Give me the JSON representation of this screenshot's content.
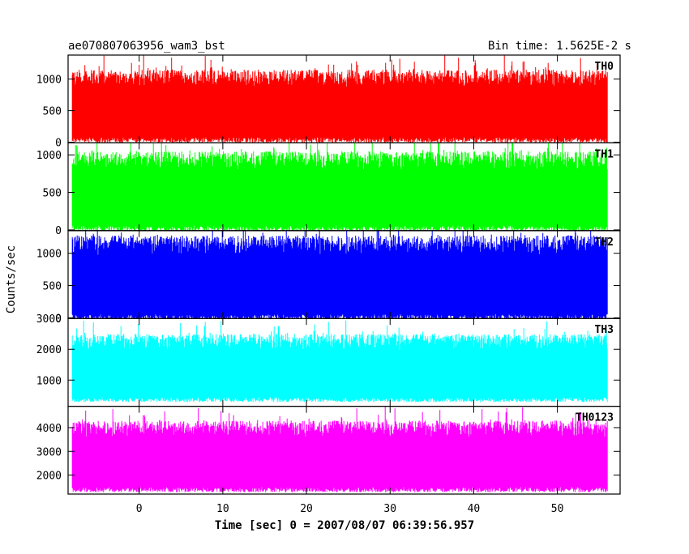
{
  "header": {
    "title": "ae070807063956_wam3_bst",
    "bin_time": "Bin time: 1.5625E-2 s"
  },
  "axes": {
    "ylabel": "Counts/sec",
    "xlabel": "Time [sec] 0 = 2007/08/07 06:39:56.957"
  },
  "chart_data": {
    "type": "line",
    "title": "ae070807063956_wam3_bst",
    "subtitle": "Bin time: 1.5625E-2 s",
    "xlabel": "Time [sec] 0 = 2007/08/07 06:39:56.957",
    "ylabel": "Counts/sec",
    "xlim": [
      -8.5,
      57.5
    ],
    "data_x_range": [
      -8.0,
      56.0
    ],
    "x_ticks": [
      0,
      10,
      20,
      30,
      40,
      50
    ],
    "grid": false,
    "panels": [
      {
        "name": "TH0",
        "color": "#ff0000",
        "ylim": [
          -10,
          1380
        ],
        "y_ticks": [
          0,
          500,
          1000
        ],
        "typical_range": [
          80,
          1150
        ],
        "mean": 550
      },
      {
        "name": "TH1",
        "color": "#00ff00",
        "ylim": [
          -10,
          1160
        ],
        "y_ticks": [
          0,
          500,
          1000
        ],
        "typical_range": [
          60,
          1050
        ],
        "mean": 500
      },
      {
        "name": "TH2",
        "color": "#0000ff",
        "ylim": [
          -10,
          1350
        ],
        "y_ticks": [
          0,
          500,
          1000
        ],
        "typical_range": [
          60,
          1280
        ],
        "mean": 600
      },
      {
        "name": "TH3",
        "color": "#00ffff",
        "ylim": [
          150,
          3000
        ],
        "y_ticks": [
          1000,
          2000,
          3000
        ],
        "typical_range": [
          450,
          2500
        ],
        "mean": 1350
      },
      {
        "name": "TH0123",
        "color": "#ff00ff",
        "ylim": [
          1200,
          4900
        ],
        "y_ticks": [
          2000,
          3000,
          4000
        ],
        "typical_range": [
          1500,
          4300
        ],
        "mean": 2700
      }
    ]
  }
}
